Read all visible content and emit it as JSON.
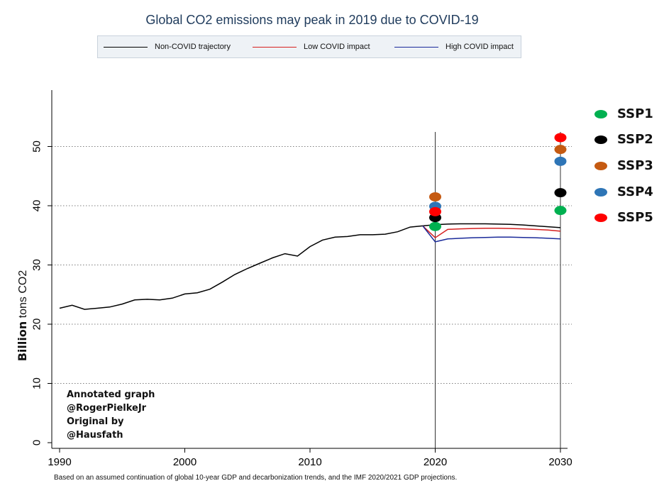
{
  "chart_data": {
    "type": "line",
    "title": "Global CO2 emissions may peak in 2019 due to COVID-19",
    "ylabel_bold": "Billion",
    "ylabel_rest": " tons CO2",
    "xlim": [
      1990,
      2030
    ],
    "ylim": [
      0,
      60
    ],
    "xticks": [
      1990,
      2000,
      2010,
      2020,
      2030
    ],
    "yticks": [
      0,
      10,
      20,
      30,
      40,
      50
    ],
    "grid": "horizontal dotted",
    "vlines": [
      2020,
      2030
    ],
    "legend_position": "top",
    "series": [
      {
        "name": "Non-COVID trajectory",
        "color": "#000000",
        "points": [
          [
            1990,
            22.7
          ],
          [
            1991,
            23.2
          ],
          [
            1992,
            22.5
          ],
          [
            1993,
            22.7
          ],
          [
            1994,
            22.9
          ],
          [
            1995,
            23.4
          ],
          [
            1996,
            24.1
          ],
          [
            1997,
            24.2
          ],
          [
            1998,
            24.1
          ],
          [
            1999,
            24.4
          ],
          [
            2000,
            25.1
          ],
          [
            2001,
            25.3
          ],
          [
            2002,
            25.9
          ],
          [
            2003,
            27.1
          ],
          [
            2004,
            28.4
          ],
          [
            2005,
            29.4
          ],
          [
            2006,
            30.3
          ],
          [
            2007,
            31.2
          ],
          [
            2008,
            31.9
          ],
          [
            2009,
            31.5
          ],
          [
            2010,
            33.1
          ],
          [
            2011,
            34.2
          ],
          [
            2012,
            34.7
          ],
          [
            2013,
            34.8
          ],
          [
            2014,
            35.1
          ],
          [
            2015,
            35.1
          ],
          [
            2016,
            35.2
          ],
          [
            2017,
            35.6
          ],
          [
            2018,
            36.4
          ],
          [
            2019,
            36.6
          ],
          [
            2020,
            36.8
          ],
          [
            2021,
            36.9
          ],
          [
            2022,
            36.95
          ],
          [
            2023,
            36.95
          ],
          [
            2024,
            36.95
          ],
          [
            2025,
            36.9
          ],
          [
            2026,
            36.85
          ],
          [
            2027,
            36.75
          ],
          [
            2028,
            36.6
          ],
          [
            2029,
            36.45
          ],
          [
            2030,
            36.3
          ]
        ]
      },
      {
        "name": "Low COVID impact",
        "color": "#d62020",
        "points": [
          [
            2019,
            36.6
          ],
          [
            2020,
            34.6
          ],
          [
            2021,
            36.0
          ],
          [
            2022,
            36.1
          ],
          [
            2023,
            36.15
          ],
          [
            2024,
            36.2
          ],
          [
            2025,
            36.2
          ],
          [
            2026,
            36.15
          ],
          [
            2027,
            36.1
          ],
          [
            2028,
            36.0
          ],
          [
            2029,
            35.9
          ],
          [
            2030,
            35.7
          ]
        ]
      },
      {
        "name": "High COVID impact",
        "color": "#1a2a9a",
        "points": [
          [
            2019,
            36.6
          ],
          [
            2020,
            33.9
          ],
          [
            2021,
            34.4
          ],
          [
            2022,
            34.5
          ],
          [
            2023,
            34.6
          ],
          [
            2024,
            34.65
          ],
          [
            2025,
            34.7
          ],
          [
            2026,
            34.7
          ],
          [
            2027,
            34.65
          ],
          [
            2028,
            34.6
          ],
          [
            2029,
            34.5
          ],
          [
            2030,
            34.4
          ]
        ]
      }
    ],
    "ssp_points": [
      {
        "name": "SSP1",
        "color": "#00b050",
        "values": [
          [
            2020,
            36.5
          ],
          [
            2030,
            39.2
          ]
        ]
      },
      {
        "name": "SSP2",
        "color": "#000000",
        "values": [
          [
            2020,
            38.0
          ],
          [
            2030,
            42.2
          ]
        ]
      },
      {
        "name": "SSP3",
        "color": "#c55a11",
        "values": [
          [
            2020,
            41.5
          ],
          [
            2030,
            49.5
          ]
        ]
      },
      {
        "name": "SSP4",
        "color": "#2e75b6",
        "values": [
          [
            2020,
            39.9
          ],
          [
            2030,
            47.5
          ]
        ]
      },
      {
        "name": "SSP5",
        "color": "#ff0000",
        "values": [
          [
            2020,
            39.0
          ],
          [
            2030,
            51.5
          ]
        ]
      }
    ],
    "annotation": [
      "Annotated graph",
      "@RogerPielkeJr",
      "Original by",
      "@Hausfath"
    ],
    "footnote": "Based on an assumed continuation of global 10-year GDP and decarbonization trends, and the IMF 2020/2021 GDP projections."
  }
}
